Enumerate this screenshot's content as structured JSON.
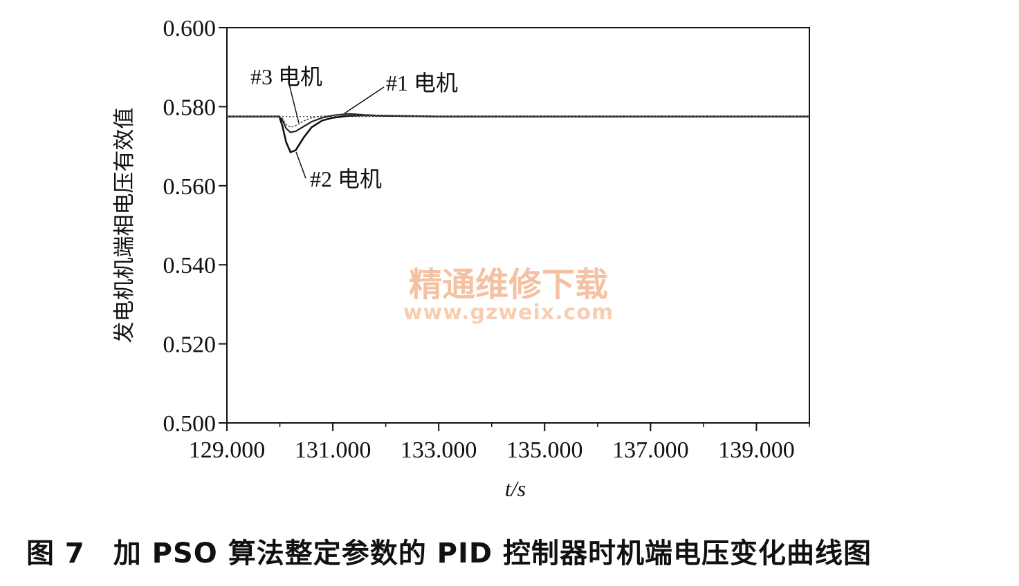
{
  "chart_data": {
    "type": "line",
    "title": "",
    "xlabel": "t/s",
    "ylabel": "发电机机端相电压有效值",
    "xlim": [
      129.0,
      140.0
    ],
    "ylim": [
      0.5,
      0.6
    ],
    "x_ticks": [
      129.0,
      131.0,
      133.0,
      135.0,
      137.0,
      139.0
    ],
    "x_tick_labels": [
      "129.000",
      "131.000",
      "133.000",
      "135.000",
      "137.000",
      "139.000"
    ],
    "y_ticks": [
      0.6,
      0.58,
      0.56,
      0.54,
      0.52,
      0.5
    ],
    "y_tick_labels": [
      "0.600",
      "0.580",
      "0.560",
      "0.540",
      "0.520",
      "0.500"
    ],
    "reference_line": 0.5775,
    "series": [
      {
        "name": "#1 电机",
        "x": [
          129.0,
          129.99,
          130.05,
          130.12,
          130.2,
          130.3,
          130.45,
          130.6,
          130.8,
          131.0,
          131.3,
          131.6,
          132.0,
          132.5,
          133.0,
          134.0,
          135.0,
          136.0,
          137.0,
          139.0,
          140.0
        ],
        "y": [
          0.5775,
          0.5775,
          0.5765,
          0.5745,
          0.5735,
          0.5738,
          0.575,
          0.5762,
          0.5772,
          0.5778,
          0.5782,
          0.5779,
          0.5777,
          0.5776,
          0.5775,
          0.5775,
          0.5775,
          0.5775,
          0.5775,
          0.5775,
          0.5775
        ]
      },
      {
        "name": "#2 电机",
        "x": [
          129.0,
          129.99,
          130.05,
          130.12,
          130.2,
          130.3,
          130.45,
          130.6,
          130.8,
          131.0,
          131.3,
          131.6,
          132.0,
          132.5,
          133.0,
          134.0,
          135.0,
          136.0,
          137.0,
          139.0,
          140.0
        ],
        "y": [
          0.5775,
          0.5775,
          0.575,
          0.571,
          0.5685,
          0.569,
          0.5722,
          0.5748,
          0.5765,
          0.5772,
          0.5777,
          0.5778,
          0.5777,
          0.5776,
          0.5775,
          0.5775,
          0.5775,
          0.5775,
          0.5775,
          0.5775,
          0.5775
        ]
      },
      {
        "name": "#3 电机",
        "x": [
          129.0,
          129.99,
          130.05,
          130.12,
          130.2,
          130.3,
          130.45,
          130.6,
          130.8,
          131.0,
          131.3,
          131.6,
          132.0,
          132.5,
          133.0,
          134.0,
          135.0,
          136.0,
          137.0,
          139.0,
          140.0
        ],
        "y": [
          0.5775,
          0.5775,
          0.577,
          0.5755,
          0.5748,
          0.5752,
          0.5764,
          0.5772,
          0.5776,
          0.5778,
          0.5779,
          0.5778,
          0.5777,
          0.5776,
          0.5775,
          0.5775,
          0.5775,
          0.5775,
          0.5775,
          0.5775,
          0.5775
        ]
      }
    ]
  },
  "annotations": {
    "motor3": "#3 电机",
    "motor1": "#1 电机",
    "motor2": "#2 电机"
  },
  "watermark": {
    "line1": "精通维修下载",
    "line2": "www.gzweix.com"
  },
  "caption": "图 7　加 PSO 算法整定参数的 PID 控制器时机端电压变化曲线图"
}
